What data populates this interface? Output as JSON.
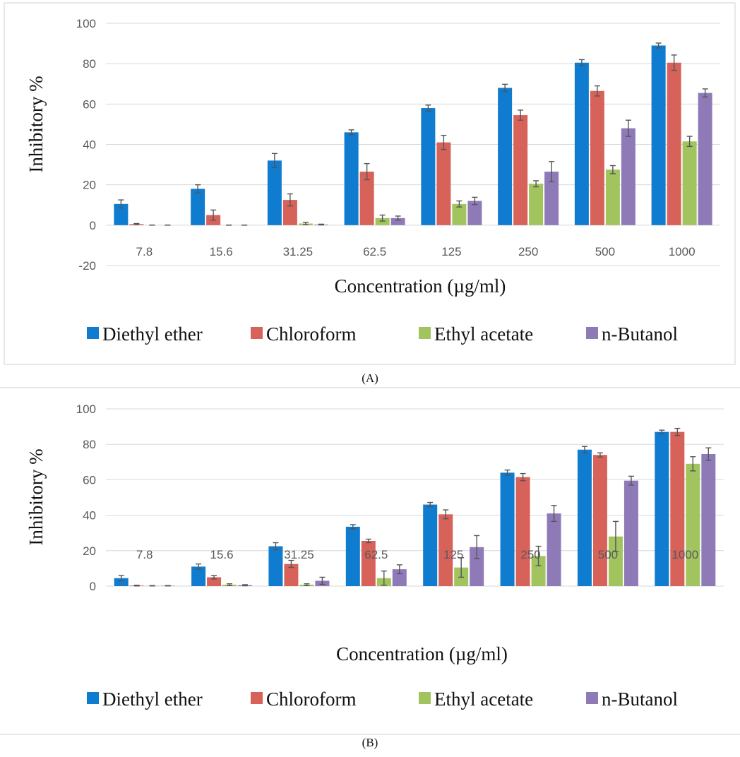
{
  "colors": {
    "series": [
      "#0f7ccf",
      "#d6625a",
      "#a1c45e",
      "#8f7ab8"
    ],
    "grid": "#d9d9d9",
    "frame": "#d0d0d0",
    "errorbar": "#555555"
  },
  "chart_data": [
    {
      "type": "bar",
      "panel_label": "(A)",
      "categories": [
        "7.8",
        "15.6",
        "31.25",
        "62.5",
        "125",
        "250",
        "500",
        "1000"
      ],
      "xlabel": "Concentration (µg/ml)",
      "ylabel": "Inhibitory %",
      "ylim": [
        -20,
        100
      ],
      "yticks": [
        "100",
        "80",
        "60",
        "40",
        "20",
        "0",
        "-20"
      ],
      "grid": true,
      "legend_position": "bottom",
      "series": [
        {
          "name": "Diethyl ether",
          "values": [
            10.5,
            18,
            32,
            46,
            58,
            68,
            80.5,
            89
          ],
          "errors": [
            2,
            2,
            3.5,
            1.2,
            1.5,
            1.8,
            1.5,
            1.2
          ]
        },
        {
          "name": "Chloroform",
          "values": [
            0.5,
            5,
            12.5,
            26.5,
            41,
            54.5,
            66.5,
            80.5
          ],
          "errors": [
            0.3,
            2.5,
            3,
            4,
            3.5,
            2.5,
            2.5,
            3.8
          ]
        },
        {
          "name": "Ethyl acetate",
          "values": [
            0,
            0,
            0.8,
            3.5,
            10.5,
            20.5,
            27.5,
            41.5
          ],
          "errors": [
            0,
            0,
            0.6,
            1.5,
            1.5,
            1.5,
            2,
            2.5
          ]
        },
        {
          "name": "n-Butanol",
          "values": [
            0,
            0,
            0.3,
            3.5,
            12,
            26.5,
            48,
            65.5
          ],
          "errors": [
            0,
            0,
            0.2,
            1,
            1.8,
            5,
            4,
            2
          ]
        }
      ]
    },
    {
      "type": "bar",
      "panel_label": "(B)",
      "categories": [
        "7.8",
        "15.6",
        "31.25",
        "62.5",
        "125",
        "250",
        "500",
        "1000"
      ],
      "xlabel": "Concentration (µg/ml)",
      "ylabel": "Inhibitory %",
      "ylim": [
        0,
        100
      ],
      "yticks": [
        "100",
        "80",
        "60",
        "40",
        "20",
        "0"
      ],
      "grid": true,
      "legend_position": "bottom",
      "series": [
        {
          "name": "Diethyl ether",
          "values": [
            4.5,
            11,
            22.5,
            33.5,
            46,
            64,
            77,
            87
          ],
          "errors": [
            1.5,
            1.5,
            2,
            1.2,
            1.2,
            1.5,
            1.8,
            1
          ]
        },
        {
          "name": "Chloroform",
          "values": [
            0.3,
            5,
            12.5,
            25.5,
            40.5,
            61.5,
            74,
            87
          ],
          "errors": [
            0.2,
            1,
            2,
            1,
            2.5,
            2,
            1.2,
            2
          ]
        },
        {
          "name": "Ethyl acetate",
          "values": [
            0.2,
            0.8,
            0.8,
            4.5,
            10.5,
            17,
            28,
            69
          ],
          "errors": [
            0.1,
            0.5,
            0.5,
            4,
            5.5,
            5.5,
            8.5,
            4
          ]
        },
        {
          "name": "n-Butanol",
          "values": [
            0.2,
            0.5,
            3,
            9.5,
            22,
            41,
            59.5,
            74.5
          ],
          "errors": [
            0.1,
            0.3,
            2,
            2.5,
            6.5,
            4.5,
            2.5,
            3.5
          ]
        }
      ]
    }
  ]
}
